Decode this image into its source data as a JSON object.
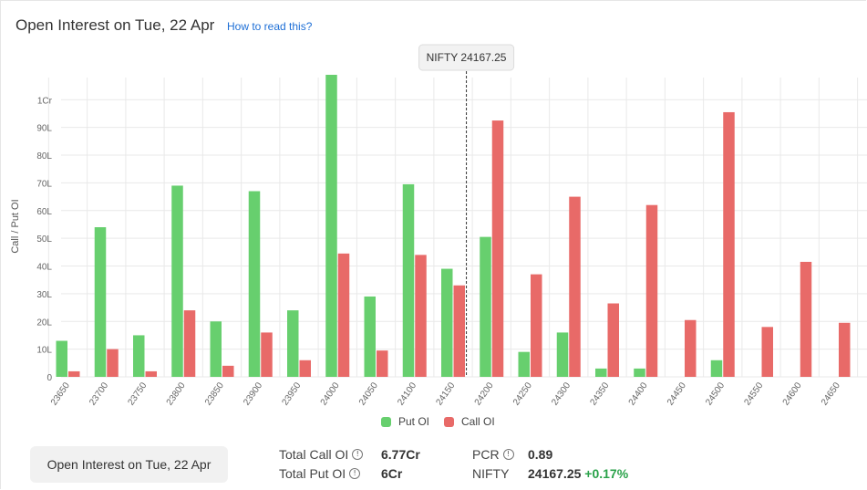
{
  "header": {
    "title": "Open Interest on Tue, 22 Apr",
    "help_link": "How to read this?"
  },
  "spot_marker": {
    "label": "NIFTY 24167.25",
    "value": 24167.25
  },
  "colors": {
    "put": "#67cf6e",
    "call": "#e86a68",
    "grid": "#e9e9e9",
    "link": "#1e6fd6",
    "positive": "#2aa24a"
  },
  "chart_data": {
    "type": "bar",
    "ylabel": "Call / Put OI",
    "xlabel": "",
    "ylim": [
      0,
      10800000
    ],
    "yticks": [
      {
        "value": 0,
        "label": "0"
      },
      {
        "value": 1000000,
        "label": "10L"
      },
      {
        "value": 2000000,
        "label": "20L"
      },
      {
        "value": 3000000,
        "label": "30L"
      },
      {
        "value": 4000000,
        "label": "40L"
      },
      {
        "value": 5000000,
        "label": "50L"
      },
      {
        "value": 6000000,
        "label": "60L"
      },
      {
        "value": 7000000,
        "label": "70L"
      },
      {
        "value": 8000000,
        "label": "80L"
      },
      {
        "value": 9000000,
        "label": "90L"
      },
      {
        "value": 10000000,
        "label": "1Cr"
      }
    ],
    "categories": [
      "23650",
      "23700",
      "23750",
      "23800",
      "23850",
      "23900",
      "23950",
      "24000",
      "24050",
      "24100",
      "24150",
      "24200",
      "24250",
      "24300",
      "24350",
      "24400",
      "24450",
      "24500",
      "24550",
      "24600",
      "24650"
    ],
    "series": [
      {
        "name": "Put OI",
        "values": [
          1300000,
          5400000,
          1500000,
          6900000,
          2000000,
          6700000,
          2400000,
          10900000,
          2900000,
          6950000,
          3900000,
          5050000,
          900000,
          1600000,
          300000,
          300000,
          0,
          600000,
          0,
          0,
          0
        ]
      },
      {
        "name": "Call OI",
        "values": [
          200000,
          1000000,
          200000,
          2400000,
          400000,
          1600000,
          600000,
          4450000,
          950000,
          4400000,
          3300000,
          9250000,
          3700000,
          6500000,
          2650000,
          6200000,
          2050000,
          9550000,
          1800000,
          4150000,
          1950000
        ]
      }
    ],
    "grid": true,
    "legend_position": "bottom-center"
  },
  "legend": {
    "put": "Put OI",
    "call": "Call OI"
  },
  "footer": {
    "button": "Open Interest on Tue, 22 Apr",
    "total_call_label": "Total Call OI",
    "total_call_value": "6.77Cr",
    "total_put_label": "Total Put OI",
    "total_put_value": "6Cr",
    "pcr_label": "PCR",
    "pcr_value": "0.89",
    "nifty_label": "NIFTY",
    "nifty_value": "24167.25",
    "nifty_change": "+0.17%"
  }
}
